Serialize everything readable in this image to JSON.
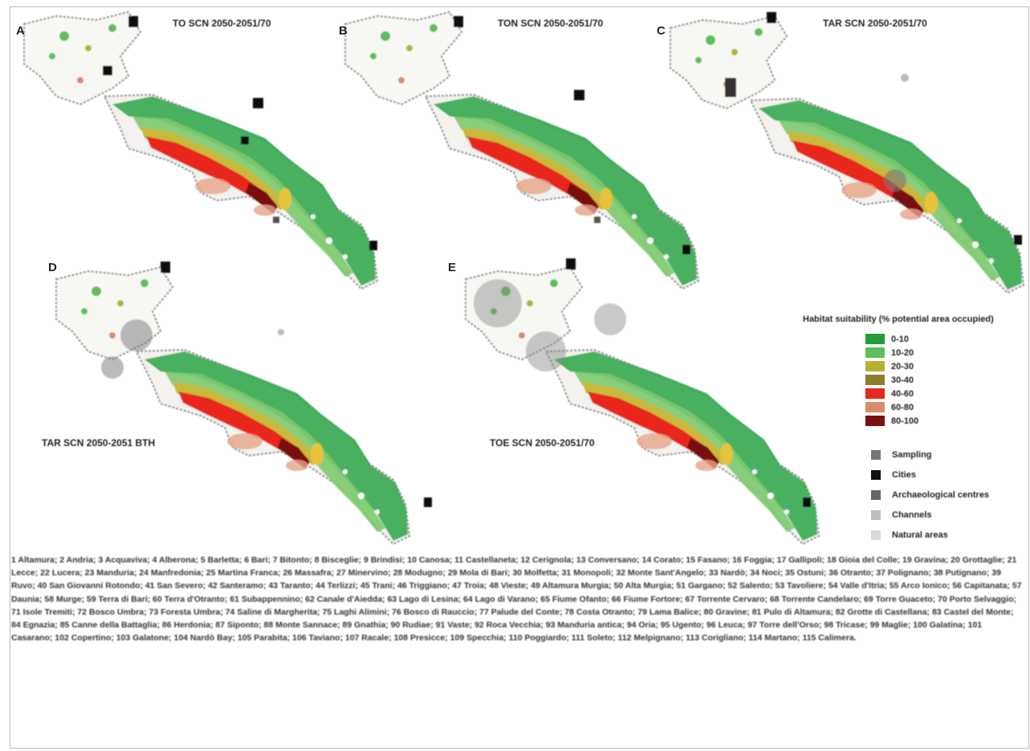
{
  "colors": {
    "class_1": "#1f9e3a",
    "class_2": "#5cbf5a",
    "class_3": "#b5b232",
    "class_4": "#8e7d2a",
    "class_5": "#e8281c",
    "class_6": "#d98c6a",
    "class_7": "#7a1010",
    "outline": "#8a8a8a",
    "city": "#111111",
    "symbol_gray": "#777777"
  },
  "panels": [
    {
      "letter": "A",
      "title": "TO SCN 2050-2051/70"
    },
    {
      "letter": "B",
      "title": "TON SCN 2050-2051/70"
    },
    {
      "letter": "C",
      "title": "TAR SCN 2050-2051/70"
    },
    {
      "letter": "D",
      "title": "TAR SCN 2050-2051 BTH"
    },
    {
      "letter": "E",
      "title": "TOE SCN 2050-2051/70"
    }
  ],
  "legend": {
    "title": "Habitat suitability (% potential area occupied)",
    "classes": [
      {
        "label": "0-10",
        "color": "#1f9e3a"
      },
      {
        "label": "10-20",
        "color": "#5cbf5a"
      },
      {
        "label": "20-30",
        "color": "#b5b232"
      },
      {
        "label": "30-40",
        "color": "#8e7d2a"
      },
      {
        "label": "40-60",
        "color": "#e8281c"
      },
      {
        "label": "60-80",
        "color": "#d98c6a"
      },
      {
        "label": "80-100",
        "color": "#7a1010"
      }
    ]
  },
  "symbols": [
    {
      "label": "Sampling",
      "color": "#777777"
    },
    {
      "label": "Cities",
      "color": "#111111"
    },
    {
      "label": "Archaeological centres",
      "color": "#666666"
    },
    {
      "label": "Channels",
      "color": "#bdbdbd"
    },
    {
      "label": "Natural areas",
      "color": "#d9d9d9"
    }
  ],
  "caption": "1 Altamura; 2 Andria; 3 Acquaviva; 4 Alberona; 5 Barletta; 6 Bari; 7 Bitonto; 8 Bisceglie; 9 Brindisi; 10 Canosa; 11 Castellaneta; 12 Cerignola; 13 Conversano; 14 Corato; 15 Fasano; 16 Foggia; 17 Gallipoli; 18 Gioia del Colle; 19 Gravina; 20 Grottaglie; 21 Lecce; 22 Lucera; 23 Manduria; 24 Manfredonia; 25 Martina Franca; 26 Massafra; 27 Minervino; 28 Modugno; 29 Mola di Bari; 30 Molfetta; 31 Monopoli; 32 Monte Sant'Angelo; 33 Nardò; 34 Noci; 35 Ostuni; 36 Otranto; 37 Polignano; 38 Putignano; 39 Ruvo; 40 San Giovanni Rotondo; 41 San Severo; 42 Santeramo; 43 Taranto; 44 Terlizzi; 45 Trani; 46 Triggiano; 47 Troia; 48 Vieste; 49 Altamura Murgia; 50 Alta Murgia; 51 Gargano; 52 Salento; 53 Tavoliere; 54 Valle d'Itria; 55 Arco Ionico; 56 Capitanata; 57 Daunia; 58 Murge; 59 Terra di Bari; 60 Terra d'Otranto; 61 Subappennino; 62 Canale d'Aiedda; 63 Lago di Lesina; 64 Lago di Varano; 65 Fiume Ofanto; 66 Fiume Fortore; 67 Torrente Cervaro; 68 Torrente Candelaro; 69 Torre Guaceto; 70 Porto Selvaggio; 71 Isole Tremiti; 72 Bosco Umbra; 73 Foresta Umbra; 74 Saline di Margherita; 75 Laghi Alimini; 76 Bosco di Rauccio; 77 Palude del Conte; 78 Costa Otranto; 79 Lama Balice; 80 Gravine; 81 Pulo di Altamura; 82 Grotte di Castellana; 83 Castel del Monte; 84 Egnazia; 85 Canne della Battaglia; 86 Herdonia; 87 Siponto; 88 Monte Sannace; 89 Gnathia; 90 Rudiae; 91 Vaste; 92 Roca Vecchia; 93 Manduria antica; 94 Oria; 95 Ugento; 96 Leuca; 97 Torre dell'Orso; 98 Tricase; 99 Maglie; 100 Galatina; 101 Casarano; 102 Copertino; 103 Galatone; 104 Nardò Bay; 105 Parabita; 106 Taviano; 107 Racale; 108 Presicce; 109 Specchia; 110 Poggiardo; 111 Soleto; 112 Melpignano; 113 Corigliano; 114 Martano; 115 Calimera."
}
